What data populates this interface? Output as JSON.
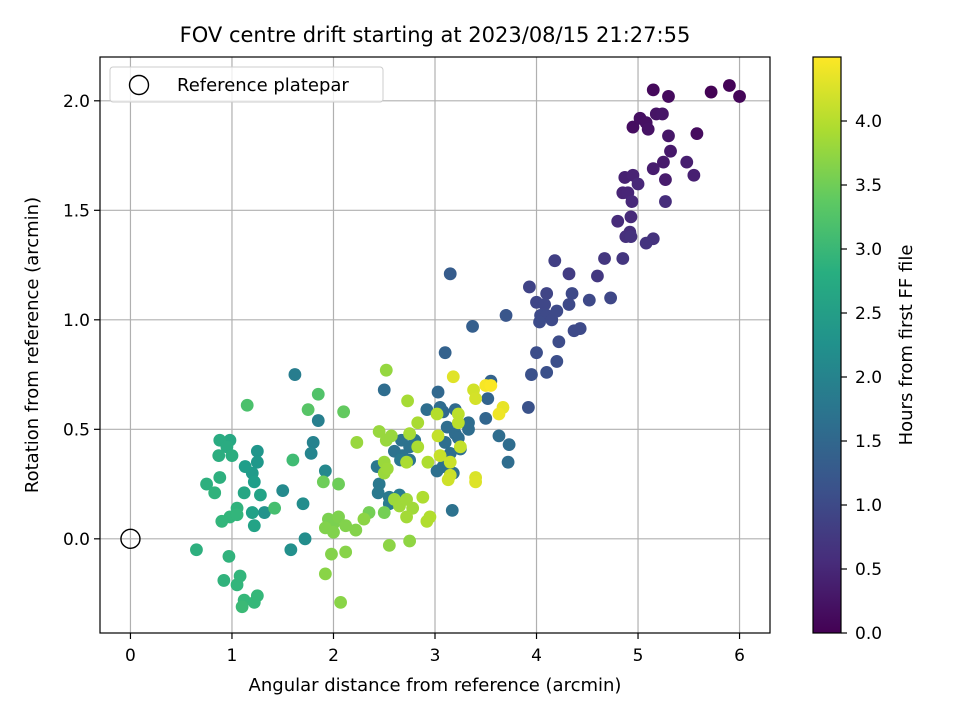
{
  "chart_data": {
    "type": "scatter",
    "title": "FOV centre drift starting at 2023/08/15 21:27:55",
    "xlabel": "Angular distance from reference (arcmin)",
    "ylabel": "Rotation from reference (arcmin)",
    "xlim": [
      -0.3,
      6.3
    ],
    "ylim": [
      -0.43,
      2.2
    ],
    "xticks": [
      0,
      1,
      2,
      3,
      4,
      5,
      6
    ],
    "xtick_labels": [
      "0",
      "1",
      "2",
      "3",
      "4",
      "5",
      "6"
    ],
    "yticks": [
      0.0,
      0.5,
      1.0,
      1.5,
      2.0
    ],
    "ytick_labels": [
      "0.0",
      "0.5",
      "1.0",
      "1.5",
      "2.0"
    ],
    "grid": true,
    "colormap": "viridis",
    "colorbar": {
      "label": "Hours from first FF file",
      "range": [
        0.0,
        4.5
      ],
      "ticks": [
        0.0,
        0.5,
        1.0,
        1.5,
        2.0,
        2.5,
        3.0,
        3.5,
        4.0
      ],
      "tick_labels": [
        "0.0",
        "0.5",
        "1.0",
        "1.5",
        "2.0",
        "2.5",
        "3.0",
        "3.5",
        "4.0"
      ]
    },
    "legend": {
      "placement": "top-left",
      "entries": [
        "Reference platepar"
      ]
    },
    "reference_point": {
      "x": 0.0,
      "y": 0.0,
      "label": "Reference platepar"
    },
    "points": [
      {
        "x": 5.72,
        "y": 2.04,
        "t": 0.02
      },
      {
        "x": 5.9,
        "y": 2.07,
        "t": 0.04
      },
      {
        "x": 6.0,
        "y": 2.02,
        "t": 0.06
      },
      {
        "x": 5.15,
        "y": 2.05,
        "t": 0.1
      },
      {
        "x": 5.3,
        "y": 2.02,
        "t": 0.12
      },
      {
        "x": 5.58,
        "y": 1.85,
        "t": 0.14
      },
      {
        "x": 4.95,
        "y": 1.88,
        "t": 0.16
      },
      {
        "x": 5.02,
        "y": 1.92,
        "t": 0.18
      },
      {
        "x": 5.08,
        "y": 1.9,
        "t": 0.2
      },
      {
        "x": 5.1,
        "y": 1.87,
        "t": 0.22
      },
      {
        "x": 5.18,
        "y": 1.94,
        "t": 0.24
      },
      {
        "x": 5.24,
        "y": 1.94,
        "t": 0.26
      },
      {
        "x": 5.3,
        "y": 1.84,
        "t": 0.28
      },
      {
        "x": 5.32,
        "y": 1.77,
        "t": 0.3
      },
      {
        "x": 5.25,
        "y": 1.72,
        "t": 0.32
      },
      {
        "x": 5.27,
        "y": 1.64,
        "t": 0.34
      },
      {
        "x": 5.15,
        "y": 1.69,
        "t": 0.36
      },
      {
        "x": 5.48,
        "y": 1.72,
        "t": 0.38
      },
      {
        "x": 5.55,
        "y": 1.66,
        "t": 0.4
      },
      {
        "x": 4.87,
        "y": 1.65,
        "t": 0.42
      },
      {
        "x": 4.95,
        "y": 1.66,
        "t": 0.44
      },
      {
        "x": 4.85,
        "y": 1.58,
        "t": 0.46
      },
      {
        "x": 4.9,
        "y": 1.58,
        "t": 0.48
      },
      {
        "x": 5.0,
        "y": 1.62,
        "t": 0.5
      },
      {
        "x": 4.94,
        "y": 1.54,
        "t": 0.52
      },
      {
        "x": 4.93,
        "y": 1.47,
        "t": 0.54
      },
      {
        "x": 4.8,
        "y": 1.45,
        "t": 0.56
      },
      {
        "x": 5.27,
        "y": 1.54,
        "t": 0.58
      },
      {
        "x": 4.92,
        "y": 1.4,
        "t": 0.6
      },
      {
        "x": 4.88,
        "y": 1.38,
        "t": 0.62
      },
      {
        "x": 4.93,
        "y": 1.38,
        "t": 0.64
      },
      {
        "x": 5.15,
        "y": 1.37,
        "t": 0.66
      },
      {
        "x": 5.08,
        "y": 1.35,
        "t": 0.68
      },
      {
        "x": 4.85,
        "y": 1.28,
        "t": 0.7
      },
      {
        "x": 4.67,
        "y": 1.28,
        "t": 0.72
      },
      {
        "x": 4.6,
        "y": 1.2,
        "t": 0.74
      },
      {
        "x": 4.32,
        "y": 1.21,
        "t": 0.8
      },
      {
        "x": 4.18,
        "y": 1.27,
        "t": 0.84
      },
      {
        "x": 3.93,
        "y": 1.15,
        "t": 0.9
      },
      {
        "x": 4.1,
        "y": 1.12,
        "t": 0.92
      },
      {
        "x": 4.0,
        "y": 1.08,
        "t": 0.94
      },
      {
        "x": 4.08,
        "y": 1.07,
        "t": 0.96
      },
      {
        "x": 4.35,
        "y": 1.12,
        "t": 0.98
      },
      {
        "x": 4.32,
        "y": 1.07,
        "t": 0.98
      },
      {
        "x": 4.52,
        "y": 1.09,
        "t": 0.98
      },
      {
        "x": 4.73,
        "y": 1.1,
        "t": 0.95
      },
      {
        "x": 4.04,
        "y": 1.02,
        "t": 1.0
      },
      {
        "x": 4.1,
        "y": 1.02,
        "t": 1.0
      },
      {
        "x": 4.15,
        "y": 1.0,
        "t": 1.0
      },
      {
        "x": 4.2,
        "y": 1.04,
        "t": 1.0
      },
      {
        "x": 4.03,
        "y": 0.99,
        "t": 1.02
      },
      {
        "x": 4.37,
        "y": 0.95,
        "t": 1.0
      },
      {
        "x": 4.43,
        "y": 0.96,
        "t": 1.0
      },
      {
        "x": 4.22,
        "y": 0.9,
        "t": 1.04
      },
      {
        "x": 4.0,
        "y": 0.85,
        "t": 1.06
      },
      {
        "x": 4.2,
        "y": 0.81,
        "t": 1.08
      },
      {
        "x": 4.1,
        "y": 0.76,
        "t": 1.1
      },
      {
        "x": 3.95,
        "y": 0.75,
        "t": 1.12
      },
      {
        "x": 3.92,
        "y": 0.6,
        "t": 1.14
      },
      {
        "x": 3.7,
        "y": 1.02,
        "t": 1.2
      },
      {
        "x": 3.15,
        "y": 1.21,
        "t": 1.3
      },
      {
        "x": 3.37,
        "y": 0.97,
        "t": 1.35
      },
      {
        "x": 3.1,
        "y": 0.85,
        "t": 1.4
      },
      {
        "x": 3.55,
        "y": 0.72,
        "t": 1.42
      },
      {
        "x": 3.52,
        "y": 0.64,
        "t": 1.44
      },
      {
        "x": 3.5,
        "y": 0.55,
        "t": 1.46
      },
      {
        "x": 3.03,
        "y": 0.67,
        "t": 1.5
      },
      {
        "x": 3.08,
        "y": 0.58,
        "t": 1.52
      },
      {
        "x": 3.2,
        "y": 0.59,
        "t": 1.54
      },
      {
        "x": 2.5,
        "y": 0.68,
        "t": 1.6
      },
      {
        "x": 2.92,
        "y": 0.59,
        "t": 1.62
      },
      {
        "x": 3.05,
        "y": 0.6,
        "t": 1.58
      },
      {
        "x": 3.12,
        "y": 0.51,
        "t": 1.6
      },
      {
        "x": 3.2,
        "y": 0.48,
        "t": 1.6
      },
      {
        "x": 3.23,
        "y": 0.46,
        "t": 1.6
      },
      {
        "x": 3.33,
        "y": 0.5,
        "t": 1.6
      },
      {
        "x": 3.33,
        "y": 0.53,
        "t": 1.6
      },
      {
        "x": 3.1,
        "y": 0.44,
        "t": 1.62
      },
      {
        "x": 3.25,
        "y": 0.41,
        "t": 1.64
      },
      {
        "x": 3.15,
        "y": 0.39,
        "t": 1.64
      },
      {
        "x": 3.08,
        "y": 0.33,
        "t": 1.66
      },
      {
        "x": 3.02,
        "y": 0.31,
        "t": 1.66
      },
      {
        "x": 3.18,
        "y": 0.3,
        "t": 1.68
      },
      {
        "x": 3.17,
        "y": 0.13,
        "t": 1.7
      },
      {
        "x": 3.63,
        "y": 0.47,
        "t": 1.6
      },
      {
        "x": 3.73,
        "y": 0.43,
        "t": 1.6
      },
      {
        "x": 3.72,
        "y": 0.35,
        "t": 1.6
      },
      {
        "x": 2.6,
        "y": 0.4,
        "t": 1.7
      },
      {
        "x": 2.67,
        "y": 0.45,
        "t": 1.7
      },
      {
        "x": 2.75,
        "y": 0.42,
        "t": 1.7
      },
      {
        "x": 2.8,
        "y": 0.45,
        "t": 1.72
      },
      {
        "x": 2.68,
        "y": 0.38,
        "t": 1.72
      },
      {
        "x": 2.75,
        "y": 0.36,
        "t": 1.74
      },
      {
        "x": 2.43,
        "y": 0.33,
        "t": 1.78
      },
      {
        "x": 2.45,
        "y": 0.25,
        "t": 1.8
      },
      {
        "x": 2.44,
        "y": 0.21,
        "t": 1.82
      },
      {
        "x": 2.55,
        "y": 0.19,
        "t": 1.84
      },
      {
        "x": 2.55,
        "y": 0.16,
        "t": 1.86
      },
      {
        "x": 2.65,
        "y": 0.2,
        "t": 1.88
      },
      {
        "x": 2.66,
        "y": 0.36,
        "t": 1.8
      },
      {
        "x": 1.62,
        "y": 0.75,
        "t": 1.9
      },
      {
        "x": 1.85,
        "y": 0.54,
        "t": 1.95
      },
      {
        "x": 1.8,
        "y": 0.44,
        "t": 2.0
      },
      {
        "x": 1.78,
        "y": 0.39,
        "t": 2.05
      },
      {
        "x": 1.92,
        "y": 0.31,
        "t": 2.1
      },
      {
        "x": 1.5,
        "y": 0.22,
        "t": 2.15
      },
      {
        "x": 1.7,
        "y": 0.16,
        "t": 2.2
      },
      {
        "x": 1.72,
        "y": 0.0,
        "t": 2.2
      },
      {
        "x": 1.58,
        "y": -0.05,
        "t": 2.25
      },
      {
        "x": 1.32,
        "y": 0.12,
        "t": 2.3
      },
      {
        "x": 1.25,
        "y": 0.4,
        "t": 2.35
      },
      {
        "x": 1.25,
        "y": 0.35,
        "t": 2.4
      },
      {
        "x": 1.2,
        "y": 0.3,
        "t": 2.45
      },
      {
        "x": 1.13,
        "y": 0.33,
        "t": 2.5
      },
      {
        "x": 1.22,
        "y": 0.26,
        "t": 2.5
      },
      {
        "x": 1.2,
        "y": 0.12,
        "t": 2.55
      },
      {
        "x": 1.22,
        "y": 0.06,
        "t": 2.6
      },
      {
        "x": 1.28,
        "y": 0.2,
        "t": 2.6
      },
      {
        "x": 1.12,
        "y": 0.21,
        "t": 2.65
      },
      {
        "x": 0.98,
        "y": 0.45,
        "t": 2.7
      },
      {
        "x": 0.88,
        "y": 0.45,
        "t": 2.75
      },
      {
        "x": 0.95,
        "y": 0.42,
        "t": 2.75
      },
      {
        "x": 0.87,
        "y": 0.38,
        "t": 2.8
      },
      {
        "x": 1.0,
        "y": 0.38,
        "t": 2.8
      },
      {
        "x": 0.88,
        "y": 0.28,
        "t": 2.85
      },
      {
        "x": 0.75,
        "y": 0.25,
        "t": 2.85
      },
      {
        "x": 0.83,
        "y": 0.21,
        "t": 2.9
      },
      {
        "x": 1.05,
        "y": 0.14,
        "t": 2.9
      },
      {
        "x": 0.98,
        "y": 0.1,
        "t": 2.95
      },
      {
        "x": 0.9,
        "y": 0.08,
        "t": 2.95
      },
      {
        "x": 1.05,
        "y": 0.11,
        "t": 2.95
      },
      {
        "x": 0.65,
        "y": -0.05,
        "t": 2.85
      },
      {
        "x": 0.97,
        "y": -0.08,
        "t": 2.9
      },
      {
        "x": 0.92,
        "y": -0.19,
        "t": 2.9
      },
      {
        "x": 1.05,
        "y": -0.21,
        "t": 2.95
      },
      {
        "x": 1.08,
        "y": -0.17,
        "t": 2.95
      },
      {
        "x": 1.12,
        "y": -0.28,
        "t": 3.0
      },
      {
        "x": 1.22,
        "y": -0.29,
        "t": 3.0
      },
      {
        "x": 1.25,
        "y": -0.26,
        "t": 3.0
      },
      {
        "x": 1.1,
        "y": -0.31,
        "t": 3.05
      },
      {
        "x": 1.6,
        "y": 0.36,
        "t": 3.1
      },
      {
        "x": 1.42,
        "y": 0.14,
        "t": 3.15
      },
      {
        "x": 1.15,
        "y": 0.61,
        "t": 3.2
      },
      {
        "x": 1.85,
        "y": 0.66,
        "t": 3.25
      },
      {
        "x": 1.75,
        "y": 0.59,
        "t": 3.3
      },
      {
        "x": 2.1,
        "y": 0.58,
        "t": 3.4
      },
      {
        "x": 2.05,
        "y": 0.25,
        "t": 3.5
      },
      {
        "x": 1.9,
        "y": 0.26,
        "t": 3.5
      },
      {
        "x": 2.35,
        "y": 0.12,
        "t": 3.55
      },
      {
        "x": 2.5,
        "y": 0.12,
        "t": 3.55
      },
      {
        "x": 1.95,
        "y": 0.09,
        "t": 3.6
      },
      {
        "x": 2.0,
        "y": 0.07,
        "t": 3.6
      },
      {
        "x": 2.05,
        "y": 0.1,
        "t": 3.62
      },
      {
        "x": 1.92,
        "y": 0.05,
        "t": 3.64
      },
      {
        "x": 2.0,
        "y": 0.03,
        "t": 3.64
      },
      {
        "x": 2.12,
        "y": 0.06,
        "t": 3.65
      },
      {
        "x": 2.22,
        "y": 0.04,
        "t": 3.66
      },
      {
        "x": 1.98,
        "y": -0.07,
        "t": 3.66
      },
      {
        "x": 2.12,
        "y": -0.06,
        "t": 3.68
      },
      {
        "x": 1.92,
        "y": -0.16,
        "t": 3.7
      },
      {
        "x": 2.07,
        "y": -0.29,
        "t": 3.7
      },
      {
        "x": 2.55,
        "y": -0.03,
        "t": 3.72
      },
      {
        "x": 2.3,
        "y": 0.09,
        "t": 3.72
      },
      {
        "x": 2.75,
        "y": -0.01,
        "t": 3.74
      },
      {
        "x": 2.52,
        "y": 0.77,
        "t": 3.78
      },
      {
        "x": 2.23,
        "y": 0.44,
        "t": 3.8
      },
      {
        "x": 2.45,
        "y": 0.49,
        "t": 3.8
      },
      {
        "x": 2.52,
        "y": 0.45,
        "t": 3.8
      },
      {
        "x": 2.57,
        "y": 0.47,
        "t": 3.8
      },
      {
        "x": 2.5,
        "y": 0.35,
        "t": 3.82
      },
      {
        "x": 2.5,
        "y": 0.3,
        "t": 3.82
      },
      {
        "x": 2.53,
        "y": 0.32,
        "t": 3.84
      },
      {
        "x": 2.6,
        "y": 0.18,
        "t": 3.84
      },
      {
        "x": 2.65,
        "y": 0.15,
        "t": 3.85
      },
      {
        "x": 2.72,
        "y": 0.18,
        "t": 3.86
      },
      {
        "x": 2.78,
        "y": 0.14,
        "t": 3.86
      },
      {
        "x": 2.72,
        "y": 0.1,
        "t": 3.88
      },
      {
        "x": 2.75,
        "y": 0.48,
        "t": 3.9
      },
      {
        "x": 2.73,
        "y": 0.63,
        "t": 3.9
      },
      {
        "x": 2.83,
        "y": 0.53,
        "t": 3.92
      },
      {
        "x": 2.83,
        "y": 0.42,
        "t": 3.94
      },
      {
        "x": 2.72,
        "y": 0.35,
        "t": 3.94
      },
      {
        "x": 2.93,
        "y": 0.35,
        "t": 3.96
      },
      {
        "x": 2.88,
        "y": 0.19,
        "t": 3.96
      },
      {
        "x": 2.95,
        "y": 0.1,
        "t": 3.98
      },
      {
        "x": 2.92,
        "y": 0.08,
        "t": 3.98
      },
      {
        "x": 3.02,
        "y": 0.57,
        "t": 4.0
      },
      {
        "x": 3.23,
        "y": 0.57,
        "t": 4.05
      },
      {
        "x": 3.23,
        "y": 0.53,
        "t": 4.05
      },
      {
        "x": 3.25,
        "y": 0.42,
        "t": 4.1
      },
      {
        "x": 3.03,
        "y": 0.47,
        "t": 4.1
      },
      {
        "x": 3.05,
        "y": 0.38,
        "t": 4.12
      },
      {
        "x": 3.15,
        "y": 0.35,
        "t": 4.15
      },
      {
        "x": 3.15,
        "y": 0.29,
        "t": 4.15
      },
      {
        "x": 3.13,
        "y": 0.27,
        "t": 4.18
      },
      {
        "x": 3.38,
        "y": 0.68,
        "t": 4.2
      },
      {
        "x": 3.4,
        "y": 0.64,
        "t": 4.22
      },
      {
        "x": 3.4,
        "y": 0.28,
        "t": 4.25
      },
      {
        "x": 3.4,
        "y": 0.26,
        "t": 4.28
      },
      {
        "x": 3.18,
        "y": 0.74,
        "t": 4.3
      },
      {
        "x": 3.67,
        "y": 0.6,
        "t": 4.35
      },
      {
        "x": 3.63,
        "y": 0.57,
        "t": 4.4
      },
      {
        "x": 3.5,
        "y": 0.7,
        "t": 4.45
      },
      {
        "x": 3.55,
        "y": 0.7,
        "t": 4.48
      }
    ]
  }
}
